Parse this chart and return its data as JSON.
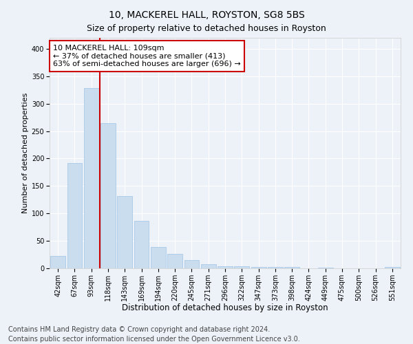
{
  "title": "10, MACKEREL HALL, ROYSTON, SG8 5BS",
  "subtitle": "Size of property relative to detached houses in Royston",
  "xlabel": "Distribution of detached houses by size in Royston",
  "ylabel": "Number of detached properties",
  "categories": [
    "42sqm",
    "67sqm",
    "93sqm",
    "118sqm",
    "143sqm",
    "169sqm",
    "194sqm",
    "220sqm",
    "245sqm",
    "271sqm",
    "296sqm",
    "322sqm",
    "347sqm",
    "373sqm",
    "398sqm",
    "424sqm",
    "449sqm",
    "475sqm",
    "500sqm",
    "526sqm",
    "551sqm"
  ],
  "values": [
    22,
    192,
    328,
    265,
    132,
    87,
    39,
    26,
    15,
    8,
    4,
    4,
    3,
    3,
    2,
    0,
    1,
    0,
    0,
    0,
    2
  ],
  "bar_color": "#c9ddef",
  "bar_edge_color": "#a8c8e8",
  "line_color": "#cc0000",
  "annotation_line1": "10 MACKEREL HALL: 109sqm",
  "annotation_line2": "← 37% of detached houses are smaller (413)",
  "annotation_line3": "63% of semi-detached houses are larger (696) →",
  "annotation_box_facecolor": "#ffffff",
  "annotation_box_edgecolor": "#cc0000",
  "ylim": [
    0,
    420
  ],
  "yticks": [
    0,
    50,
    100,
    150,
    200,
    250,
    300,
    350,
    400
  ],
  "footer1": "Contains HM Land Registry data © Crown copyright and database right 2024.",
  "footer2": "Contains public sector information licensed under the Open Government Licence v3.0.",
  "bg_color": "#edf2f9",
  "plot_bg_color": "#edf2f9",
  "title_fontsize": 10,
  "subtitle_fontsize": 9,
  "tick_fontsize": 7,
  "xlabel_fontsize": 8.5,
  "ylabel_fontsize": 8,
  "footer_fontsize": 7,
  "annotation_fontsize": 8,
  "grid_color": "#ffffff"
}
